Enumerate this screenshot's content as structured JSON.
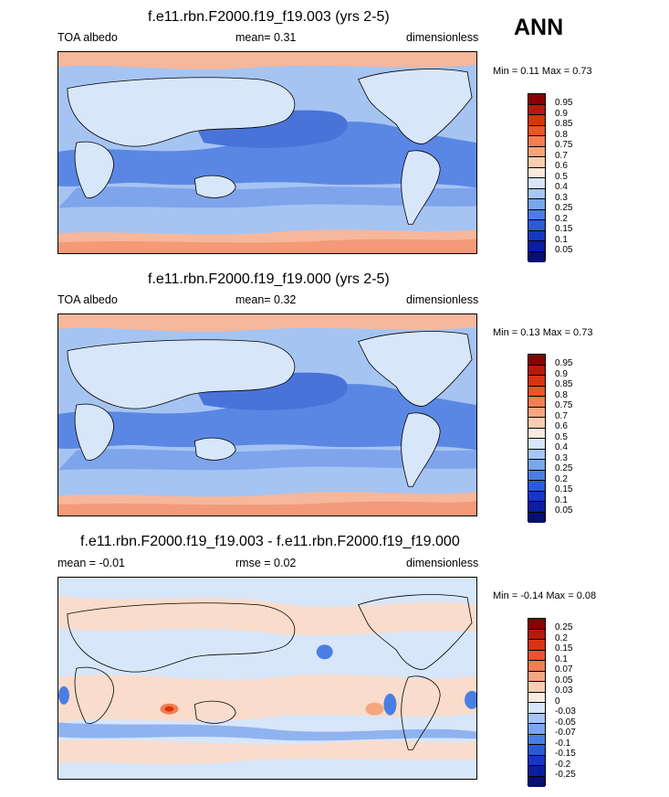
{
  "season": "ANN",
  "colors": {
    "ocean_low": "#5b87e4",
    "ocean_mid": "#a5c4f2",
    "land": "#d8e6fa",
    "polar": "#f4b79a",
    "diff_pos": "#f9dccb",
    "diff_neg": "#d8e6fa"
  },
  "panels": [
    {
      "title": "f.e11.rbn.F2000.f19_f19.003 (yrs 2-5)",
      "left": "TOA albedo",
      "center": "mean=   0.31",
      "right": "dimensionless",
      "minmax": "Min =  0.11 Max =  0.73",
      "colorbar": {
        "labels": [
          "0.95",
          "0.9",
          "0.85",
          "0.8",
          "0.75",
          "0.7",
          "0.6",
          "0.5",
          "0.4",
          "0.3",
          "0.25",
          "0.2",
          "0.15",
          "0.1",
          "0.05"
        ],
        "colors": [
          "#8b0000",
          "#b31b0d",
          "#d83412",
          "#ee5424",
          "#f37e52",
          "#f6a67f",
          "#f9cdb0",
          "#fbeadd",
          "#d7e6fb",
          "#a7c6f4",
          "#7aa6ec",
          "#4b7ee3",
          "#2a5ad8",
          "#1637c2",
          "#0a1f9f",
          "#061070"
        ]
      }
    },
    {
      "title": "f.e11.rbn.F2000.f19_f19.000 (yrs 2-5)",
      "left": "TOA albedo",
      "center": "mean=   0.32",
      "right": "dimensionless",
      "minmax": "Min =  0.13 Max =  0.73",
      "colorbar": {
        "labels": [
          "0.95",
          "0.9",
          "0.85",
          "0.8",
          "0.75",
          "0.7",
          "0.6",
          "0.5",
          "0.4",
          "0.3",
          "0.25",
          "0.2",
          "0.15",
          "0.1",
          "0.05"
        ],
        "colors": [
          "#8b0000",
          "#b31b0d",
          "#d83412",
          "#ee5424",
          "#f37e52",
          "#f6a67f",
          "#f9cdb0",
          "#fbeadd",
          "#d7e6fb",
          "#a7c6f4",
          "#7aa6ec",
          "#4b7ee3",
          "#2a5ad8",
          "#1637c2",
          "#0a1f9f",
          "#061070"
        ]
      }
    },
    {
      "title": "f.e11.rbn.F2000.f19_f19.003 - f.e11.rbn.F2000.f19_f19.000",
      "left": "mean =  -0.01",
      "center": "rmse =   0.02",
      "right": "dimensionless",
      "minmax": "Min =  -0.14 Max =  0.08",
      "colorbar": {
        "labels": [
          "0.25",
          "0.2",
          "0.15",
          "0.1",
          "0.07",
          "0.05",
          "0.03",
          "0",
          "-0.03",
          "-0.05",
          "-0.07",
          "-0.1",
          "-0.15",
          "-0.2",
          "-0.25"
        ],
        "colors": [
          "#8b0000",
          "#b31b0d",
          "#d83412",
          "#ee5424",
          "#f37e52",
          "#f6a67f",
          "#f9cdb0",
          "#fbeadd",
          "#d7e6fb",
          "#a7c6f4",
          "#7aa6ec",
          "#4b7ee3",
          "#2a5ad8",
          "#1637c2",
          "#0a1f9f",
          "#061070"
        ]
      }
    }
  ]
}
